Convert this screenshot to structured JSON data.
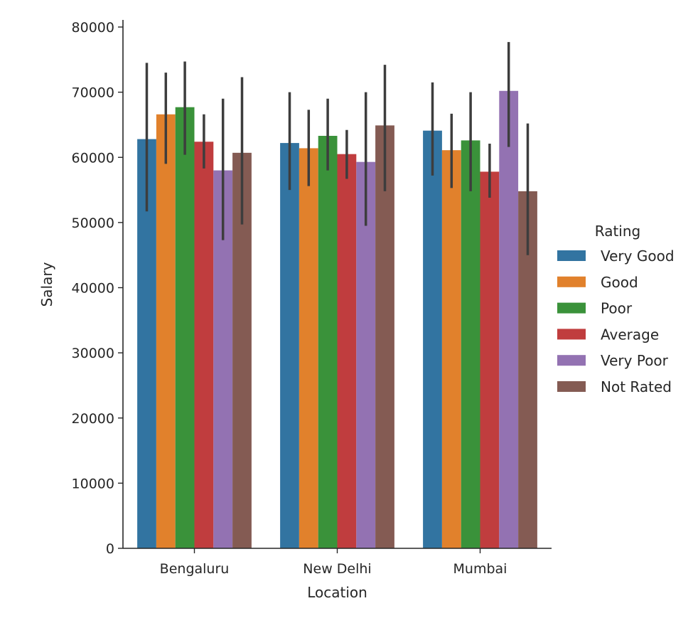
{
  "chart_data": {
    "type": "bar",
    "xlabel": "Location",
    "ylabel": "Salary",
    "ylim": [
      0,
      80000
    ],
    "yticks": [
      0,
      10000,
      20000,
      30000,
      40000,
      50000,
      60000,
      70000,
      80000
    ],
    "categories": [
      "Bengaluru",
      "New Delhi",
      "Mumbai"
    ],
    "legend": {
      "title": "Rating",
      "placement": "right"
    },
    "series": [
      {
        "name": "Very Good",
        "color": "#3274a1",
        "values": [
          62800,
          62200,
          64100
        ],
        "ci_low": [
          51700,
          55000,
          57200
        ],
        "ci_high": [
          74500,
          70000,
          71500
        ]
      },
      {
        "name": "Good",
        "color": "#e1812c",
        "values": [
          66600,
          61400,
          61100
        ],
        "ci_low": [
          59000,
          55600,
          55300
        ],
        "ci_high": [
          73000,
          67300,
          66700
        ]
      },
      {
        "name": "Poor",
        "color": "#3a923a",
        "values": [
          67700,
          63300,
          62600
        ],
        "ci_low": [
          60400,
          58000,
          54800
        ],
        "ci_high": [
          74700,
          69000,
          70000
        ]
      },
      {
        "name": "Average",
        "color": "#c03d3e",
        "values": [
          62400,
          60500,
          57800
        ],
        "ci_low": [
          58300,
          56700,
          53800
        ],
        "ci_high": [
          66600,
          64200,
          62100
        ]
      },
      {
        "name": "Very Poor",
        "color": "#9372b2",
        "values": [
          58000,
          59300,
          70200
        ],
        "ci_low": [
          47300,
          49500,
          61600
        ],
        "ci_high": [
          69000,
          70000,
          77700
        ]
      },
      {
        "name": "Not Rated",
        "color": "#845b53",
        "values": [
          60700,
          64900,
          54800
        ],
        "ci_low": [
          49700,
          54800,
          45000
        ],
        "ci_high": [
          72300,
          74200,
          65200
        ]
      }
    ]
  }
}
